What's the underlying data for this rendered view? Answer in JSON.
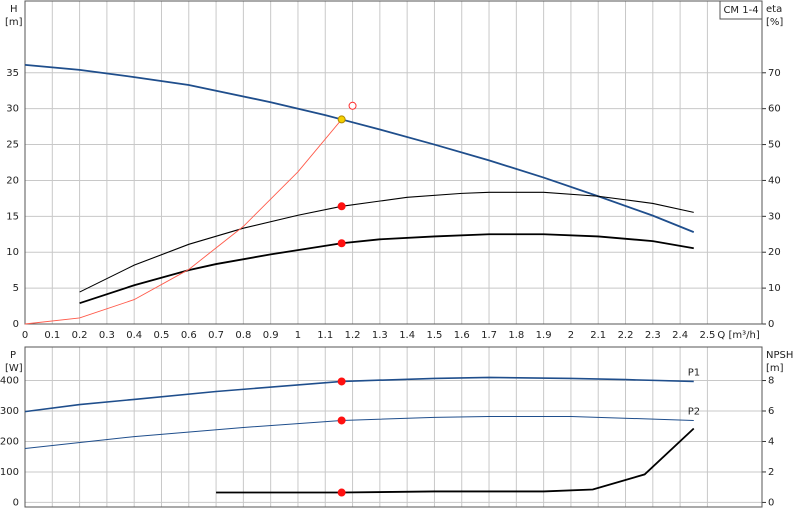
{
  "chart_data": [
    {
      "type": "line",
      "label_box": "CM 1-4",
      "ylabel": "H",
      "yunit": "[m]",
      "y2label": "eta",
      "y2unit": "[%]",
      "xlabel": "Q [m³/h]",
      "xlim": [
        0,
        2.7
      ],
      "xticks": [
        0,
        0.1,
        0.2,
        0.3,
        0.4,
        0.5,
        0.6,
        0.7,
        0.8,
        0.9,
        1,
        1.1,
        1.2,
        1.3,
        1.4,
        1.5,
        1.6,
        1.7,
        1.8,
        1.9,
        2,
        2.1,
        2.2,
        2.3,
        2.4,
        2.5
      ],
      "ylim": [
        0,
        45
      ],
      "yticks": [
        0,
        5,
        10,
        15,
        20,
        25,
        30,
        35
      ],
      "y2lim": [
        0,
        90
      ],
      "y2ticks": [
        0,
        10,
        20,
        30,
        40,
        50,
        60,
        70
      ],
      "grid": true,
      "series": [
        {
          "color": "#1f4e8c",
          "width": 1.8,
          "x": [
            0,
            0.2,
            0.4,
            0.6,
            0.7,
            0.9,
            1.1,
            1.16,
            1.3,
            1.5,
            1.7,
            1.9,
            2.1,
            2.3,
            2.45
          ],
          "values": [
            36.1,
            35.4,
            34.4,
            33.3,
            32.5,
            30.9,
            29.1,
            28.5,
            27.1,
            25,
            22.8,
            20.4,
            17.8,
            15.1,
            12.8
          ]
        },
        {
          "color": "#000000",
          "width": 1.1,
          "axis": "y2",
          "x": [
            0.2,
            0.4,
            0.6,
            0.8,
            1,
            1.16,
            1.4,
            1.6,
            1.7,
            1.9,
            2.1,
            2.3,
            2.45
          ],
          "values": [
            8.9,
            16.4,
            22.2,
            26.7,
            30.3,
            32.8,
            35.3,
            36.4,
            36.7,
            36.7,
            35.6,
            33.6,
            31.1
          ]
        },
        {
          "color": "#000000",
          "width": 1.8,
          "axis": "y2",
          "x": [
            0.2,
            0.4,
            0.6,
            0.7,
            0.9,
            1.16,
            1.3,
            1.5,
            1.7,
            1.9,
            2.1,
            2.3,
            2.45
          ],
          "values": [
            5.8,
            10.8,
            15,
            16.7,
            19.4,
            22.5,
            23.6,
            24.4,
            25,
            25,
            24.4,
            23.1,
            21.1
          ]
        },
        {
          "color": "#ff5a4a",
          "width": 0.9,
          "x": [
            0,
            0.2,
            0.4,
            0.6,
            0.8,
            1,
            1.16
          ],
          "values": [
            0,
            0.85,
            3.4,
            7.6,
            13.6,
            21.2,
            28.5
          ]
        }
      ],
      "markers": [
        {
          "x": 1.16,
          "y": 28.5,
          "color": "#f5d000",
          "style": "filled"
        },
        {
          "x": 1.2,
          "y": 30.4,
          "color": "#ff3030",
          "style": "open"
        },
        {
          "x": 1.16,
          "y": 32.8,
          "axis": "y2",
          "color": "#ff1010",
          "style": "filled"
        },
        {
          "x": 1.16,
          "y": 22.5,
          "axis": "y2",
          "color": "#ff1010",
          "style": "filled"
        }
      ]
    },
    {
      "type": "line",
      "ylabel": "P",
      "yunit": "[W]",
      "y2label": "NPSH",
      "y2unit": "[m]",
      "xlim": [
        0,
        2.7
      ],
      "xticks": [
        0,
        0.1,
        0.2,
        0.3,
        0.4,
        0.5,
        0.6,
        0.7,
        0.8,
        0.9,
        1,
        1.1,
        1.2,
        1.3,
        1.4,
        1.5,
        1.6,
        1.7,
        1.8,
        1.9,
        2,
        2.1,
        2.2,
        2.3,
        2.4,
        2.5
      ],
      "ylim": [
        -15,
        510
      ],
      "yticks": [
        0,
        100,
        200,
        300,
        400
      ],
      "y2lim": [
        -0.3,
        10.2
      ],
      "y2ticks": [
        0,
        2,
        4,
        6,
        8
      ],
      "grid": true,
      "series": [
        {
          "name": "P1",
          "color": "#1f4e8c",
          "width": 1.6,
          "x": [
            0,
            0.2,
            0.4,
            0.7,
            1.16,
            1.5,
            1.7,
            2,
            2.2,
            2.45
          ],
          "values": [
            298,
            321,
            338,
            364,
            397,
            407,
            410,
            407,
            403,
            397
          ]
        },
        {
          "name": "P2",
          "color": "#1f4e8c",
          "width": 1,
          "x": [
            0,
            0.4,
            0.8,
            1.16,
            1.5,
            1.7,
            2,
            2.45
          ],
          "values": [
            177,
            216,
            246,
            269,
            279,
            282,
            282,
            269
          ]
        },
        {
          "color": "#000000",
          "width": 1.8,
          "axis": "y2",
          "x": [
            0.7,
            1.16,
            1.5,
            1.9,
            2.08,
            2.27,
            2.45
          ],
          "values": [
            0.65,
            0.65,
            0.72,
            0.72,
            0.85,
            1.84,
            4.85
          ]
        }
      ],
      "markers": [
        {
          "x": 1.16,
          "y": 397,
          "color": "#ff1010",
          "style": "filled"
        },
        {
          "x": 1.16,
          "y": 269,
          "color": "#ff1010",
          "style": "filled"
        },
        {
          "x": 1.16,
          "y": 0.65,
          "axis": "y2",
          "color": "#ff1010",
          "style": "filled"
        }
      ]
    }
  ]
}
